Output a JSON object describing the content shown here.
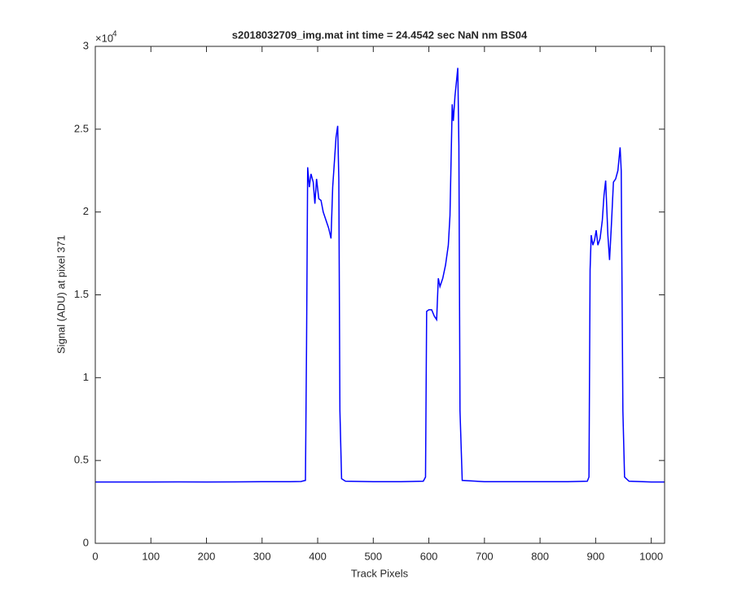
{
  "chart_data": {
    "type": "line",
    "title": "s2018032709_img.mat int time = 24.4542 sec  NaN nm BS04",
    "xlabel": "Track Pixels",
    "ylabel": "Signal (ADU) at pixel 371",
    "y_exponent": {
      "base": "×10",
      "power": "4"
    },
    "xlim": [
      0,
      1024
    ],
    "xticks": [
      0,
      100,
      200,
      300,
      400,
      500,
      600,
      700,
      800,
      900,
      1000
    ],
    "ylim": [
      0,
      30000
    ],
    "yticks": [
      {
        "value": 0,
        "label": "0"
      },
      {
        "value": 5000,
        "label": "0.5"
      },
      {
        "value": 10000,
        "label": "1"
      },
      {
        "value": 15000,
        "label": "1.5"
      },
      {
        "value": 20000,
        "label": "2"
      },
      {
        "value": 25000,
        "label": "2.5"
      },
      {
        "value": 30000,
        "label": "3"
      }
    ],
    "series": [
      {
        "color": "#0000ff",
        "x": [
          0,
          50,
          100,
          150,
          200,
          250,
          300,
          350,
          370,
          378,
          380,
          382,
          385,
          388,
          392,
          395,
          398,
          402,
          406,
          410,
          415,
          420,
          424,
          427,
          430,
          433,
          436,
          438,
          440,
          443,
          450,
          500,
          550,
          590,
          594,
          596,
          600,
          605,
          610,
          614,
          617,
          620,
          625,
          630,
          635,
          638,
          642,
          644,
          647,
          650,
          652,
          654,
          656,
          660,
          700,
          750,
          800,
          850,
          885,
          888,
          890,
          892,
          895,
          898,
          901,
          904,
          908,
          912,
          915,
          918,
          922,
          925,
          928,
          932,
          936,
          940,
          944,
          946,
          949,
          952,
          960,
          1000,
          1024
        ],
        "values": [
          3700,
          3700,
          3700,
          3710,
          3700,
          3710,
          3720,
          3720,
          3730,
          3800,
          12000,
          22700,
          21500,
          22300,
          21800,
          20500,
          22000,
          20800,
          20700,
          20000,
          19500,
          19000,
          18400,
          21500,
          23000,
          24500,
          25200,
          22000,
          8000,
          3900,
          3750,
          3720,
          3720,
          3750,
          4000,
          14000,
          14100,
          14100,
          13700,
          13500,
          16000,
          15500,
          16000,
          16800,
          18000,
          19800,
          26500,
          25500,
          27000,
          28000,
          28700,
          24000,
          8000,
          3800,
          3720,
          3720,
          3720,
          3720,
          3750,
          4000,
          16500,
          18600,
          18000,
          18300,
          18900,
          18000,
          18400,
          19500,
          21000,
          21900,
          18600,
          17100,
          19000,
          21800,
          22000,
          22500,
          23900,
          22500,
          8000,
          4000,
          3750,
          3700,
          3700
        ]
      }
    ]
  }
}
